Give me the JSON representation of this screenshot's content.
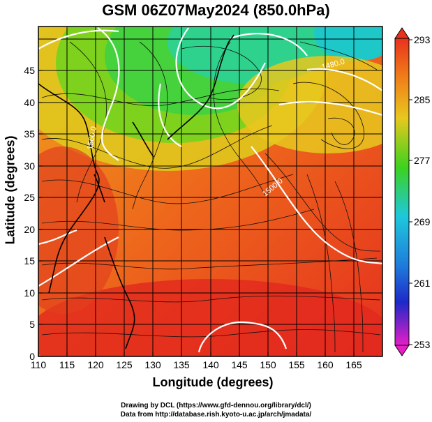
{
  "title": "GSM 06Z07May2024 (850.0hPa)",
  "axes": {
    "x_label": "Longitude (degrees)",
    "y_label": "Latitude  (degrees)",
    "x_ticks": [
      "110",
      "115",
      "120",
      "125",
      "130",
      "135",
      "140",
      "145",
      "150",
      "155",
      "160",
      "165"
    ],
    "y_ticks": [
      "0",
      "5",
      "10",
      "15",
      "20",
      "25",
      "30",
      "35",
      "40",
      "45"
    ]
  },
  "colorbar": {
    "labels": [
      "293",
      "285",
      "277",
      "269",
      "261",
      "253"
    ]
  },
  "contour_labels": [
    "1560.0",
    "1480.0",
    "1500.0"
  ],
  "credits": {
    "line1": "Drawing by DCL (https://www.gfd-dennou.org/library/dcl/)",
    "line2": "Data from http://database.rish.kyoto-u.ac.jp/arch/jmadata/"
  },
  "colors": {
    "warm": "#e8321e",
    "orange": "#f07a18",
    "yellow": "#e8c81e",
    "green": "#3cd21e",
    "cyan": "#1ec8dc",
    "blue": "#1e3cdc",
    "magenta": "#e61ec8"
  }
}
